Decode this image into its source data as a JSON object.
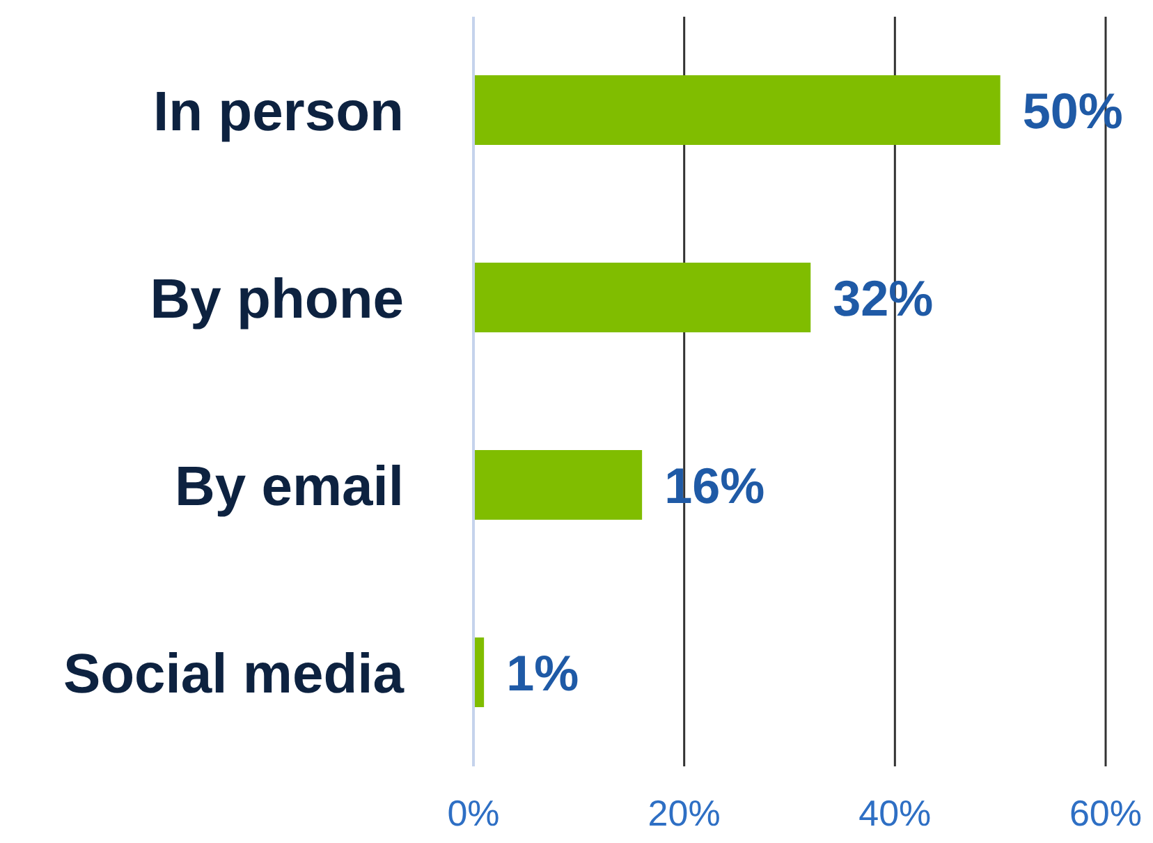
{
  "chart_data": {
    "type": "bar",
    "orientation": "horizontal",
    "categories": [
      "In person",
      "By phone",
      "By email",
      "Social media"
    ],
    "values": [
      50,
      32,
      16,
      1
    ],
    "color": "#80bd00",
    "value_labels": [
      "50%",
      "32%",
      "16%",
      "1%"
    ],
    "xlim": [
      0,
      60
    ],
    "xticks": [
      {
        "value": 0,
        "label": "0%"
      },
      {
        "value": 20,
        "label": "20%"
      },
      {
        "value": 40,
        "label": "40%"
      },
      {
        "value": 60,
        "label": "60%"
      }
    ],
    "grid": "x"
  }
}
